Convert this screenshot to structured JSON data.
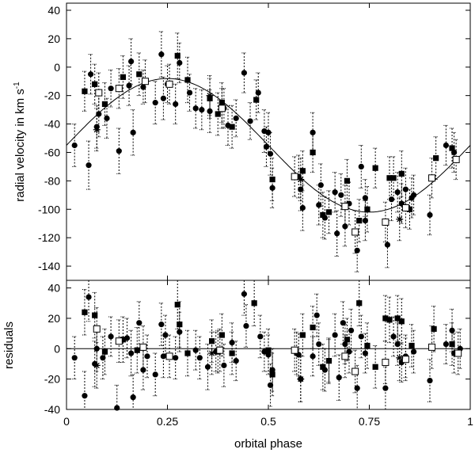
{
  "chart_data": [
    {
      "panel": "top",
      "type": "scatter",
      "title": "",
      "ylabel": "radial velocity in km s",
      "ylabel_superscript": "-1",
      "xlim": [
        0,
        1
      ],
      "ylim": [
        -150,
        45
      ],
      "xticks": [
        0,
        0.25,
        0.5,
        0.75,
        1
      ],
      "xticklabels": [
        "0",
        "0.25",
        "0.5",
        "0.75",
        "1"
      ],
      "yticks": [
        -140,
        -120,
        -100,
        -80,
        -60,
        -40,
        -20,
        0,
        20,
        40
      ],
      "ytick_labels_shown": true,
      "grid": false,
      "model_curve": {
        "offset": -55,
        "amplitude": 47,
        "phase_of_max": 0.25
      },
      "series": [
        {
          "marker": "filled-circle",
          "points": [
            [
              0.02,
              -55,
              15
            ],
            [
              0.055,
              -69,
              17
            ],
            [
              0.06,
              -5,
              14
            ],
            [
              0.075,
              -42,
              15
            ],
            [
              0.08,
              -33,
              16
            ],
            [
              0.1,
              -36,
              14
            ],
            [
              0.11,
              -15,
              13
            ],
            [
              0.13,
              -59,
              16
            ],
            [
              0.155,
              -13,
              14
            ],
            [
              0.16,
              4,
              16
            ],
            [
              0.165,
              -46,
              16
            ],
            [
              0.19,
              -14,
              12
            ],
            [
              0.22,
              -25,
              15
            ],
            [
              0.235,
              9,
              16
            ],
            [
              0.24,
              -22,
              15
            ],
            [
              0.25,
              -12,
              13
            ],
            [
              0.27,
              -26,
              14
            ],
            [
              0.28,
              3,
              14
            ],
            [
              0.305,
              -18,
              13
            ],
            [
              0.32,
              -29,
              14
            ],
            [
              0.335,
              -30,
              14
            ],
            [
              0.355,
              -31,
              15
            ],
            [
              0.39,
              -29,
              14
            ],
            [
              0.4,
              -41,
              14
            ],
            [
              0.42,
              -36,
              13
            ],
            [
              0.44,
              -4,
              14
            ],
            [
              0.455,
              -38,
              13
            ],
            [
              0.475,
              -18,
              14
            ],
            [
              0.49,
              -45,
              15
            ],
            [
              0.495,
              -56,
              14
            ],
            [
              0.5,
              -46,
              14
            ],
            [
              0.505,
              -61,
              15
            ],
            [
              0.51,
              -85,
              14
            ],
            [
              0.575,
              -77,
              15
            ],
            [
              0.58,
              -86,
              15
            ],
            [
              0.585,
              -99,
              16
            ],
            [
              0.61,
              -46,
              14
            ],
            [
              0.625,
              -97,
              14
            ],
            [
              0.63,
              -83,
              15
            ],
            [
              0.64,
              -106,
              15
            ],
            [
              0.665,
              -88,
              14
            ],
            [
              0.67,
              -117,
              16
            ],
            [
              0.68,
              -90,
              15
            ],
            [
              0.69,
              -112,
              14
            ],
            [
              0.7,
              -96,
              15
            ],
            [
              0.72,
              -129,
              15
            ],
            [
              0.73,
              -70,
              15
            ],
            [
              0.74,
              -92,
              13
            ],
            [
              0.74,
              -108,
              14
            ],
            [
              0.795,
              -125,
              16
            ],
            [
              0.805,
              -93,
              15
            ],
            [
              0.82,
              -88,
              14
            ],
            [
              0.83,
              -96,
              14
            ],
            [
              0.84,
              -86,
              15
            ],
            [
              0.855,
              -92,
              14
            ],
            [
              0.86,
              -90,
              14
            ],
            [
              0.9,
              -104,
              14
            ],
            [
              0.94,
              -55,
              14
            ],
            [
              0.96,
              -60,
              14
            ]
          ]
        },
        {
          "marker": "filled-square",
          "points": [
            [
              0.045,
              -17,
              14
            ],
            [
              0.07,
              -12,
              14
            ],
            [
              0.095,
              -26,
              15
            ],
            [
              0.14,
              -7,
              15
            ],
            [
              0.18,
              -5,
              15
            ],
            [
              0.275,
              8,
              16
            ],
            [
              0.3,
              -9,
              16
            ],
            [
              0.355,
              -22,
              14
            ],
            [
              0.375,
              -33,
              15
            ],
            [
              0.385,
              -25,
              14
            ],
            [
              0.41,
              -42,
              15
            ],
            [
              0.47,
              -23,
              14
            ],
            [
              0.51,
              -79,
              15
            ],
            [
              0.585,
              -73,
              14
            ],
            [
              0.61,
              -60,
              14
            ],
            [
              0.635,
              -104,
              16
            ],
            [
              0.65,
              -102,
              15
            ],
            [
              0.695,
              -80,
              15
            ],
            [
              0.725,
              -108,
              15
            ],
            [
              0.745,
              -100,
              16
            ],
            [
              0.765,
              -71,
              14
            ],
            [
              0.8,
              -78,
              15
            ],
            [
              0.81,
              -78,
              15
            ],
            [
              0.83,
              -75,
              16
            ],
            [
              0.85,
              -100,
              14
            ],
            [
              0.915,
              -64,
              15
            ],
            [
              0.955,
              -57,
              14
            ]
          ]
        },
        {
          "marker": "open-square",
          "points": [
            [
              0.08,
              -18,
              14
            ],
            [
              0.13,
              -15,
              14
            ],
            [
              0.195,
              -10,
              15
            ],
            [
              0.255,
              -12,
              14
            ],
            [
              0.385,
              -29,
              14
            ],
            [
              0.565,
              -77,
              14
            ],
            [
              0.69,
              -98,
              15
            ],
            [
              0.715,
              -116,
              15
            ],
            [
              0.79,
              -109,
              14
            ],
            [
              0.84,
              -99,
              14
            ],
            [
              0.905,
              -78,
              14
            ],
            [
              0.965,
              -65,
              14
            ]
          ]
        },
        {
          "marker": "star",
          "points": [
            [
              0.075,
              -44,
              15
            ],
            [
              0.355,
              -20,
              14
            ],
            [
              0.58,
              -79,
              15
            ],
            [
              0.825,
              -107,
              15
            ]
          ]
        }
      ]
    },
    {
      "panel": "bottom",
      "type": "scatter",
      "title": "",
      "xlabel": "orbital phase",
      "ylabel": "residuals",
      "xlim": [
        0,
        1
      ],
      "ylim": [
        -40,
        45
      ],
      "xticks": [
        0,
        0.25,
        0.5,
        0.75,
        1
      ],
      "xticklabels": [
        "0",
        "0.25",
        "0.5",
        "0.75",
        "1"
      ],
      "yticks": [
        -40,
        -20,
        0,
        20,
        40
      ],
      "ytick_labels_shown": true,
      "zero_line": true,
      "grid": false,
      "series": [
        {
          "marker": "filled-circle",
          "points": [
            [
              0.02,
              -6,
              14
            ],
            [
              0.045,
              -31,
              16
            ],
            [
              0.055,
              34,
              16
            ],
            [
              0.07,
              -10,
              15
            ],
            [
              0.075,
              0,
              15
            ],
            [
              0.09,
              -6,
              14
            ],
            [
              0.11,
              8,
              13
            ],
            [
              0.125,
              -39,
              15
            ],
            [
              0.15,
              7,
              13
            ],
            [
              0.16,
              -3,
              15
            ],
            [
              0.165,
              -32,
              15
            ],
            [
              0.18,
              17,
              14
            ],
            [
              0.19,
              -14,
              13
            ],
            [
              0.2,
              -5,
              14
            ],
            [
              0.22,
              -17,
              14
            ],
            [
              0.235,
              16,
              14
            ],
            [
              0.24,
              -5,
              14
            ],
            [
              0.245,
              9,
              13
            ],
            [
              0.27,
              -6,
              14
            ],
            [
              0.28,
              11,
              13
            ],
            [
              0.32,
              -1,
              13
            ],
            [
              0.33,
              -6,
              14
            ],
            [
              0.35,
              -12,
              15
            ],
            [
              0.37,
              -2,
              13
            ],
            [
              0.39,
              -11,
              14
            ],
            [
              0.41,
              4,
              13
            ],
            [
              0.42,
              -8,
              13
            ],
            [
              0.44,
              36,
              14
            ],
            [
              0.445,
              15,
              14
            ],
            [
              0.48,
              8,
              14
            ],
            [
              0.49,
              -2,
              13
            ],
            [
              0.5,
              -4,
              13
            ],
            [
              0.505,
              -24,
              14
            ],
            [
              0.51,
              -14,
              14
            ],
            [
              0.57,
              -3,
              14
            ],
            [
              0.575,
              -4,
              14
            ],
            [
              0.58,
              -20,
              15
            ],
            [
              0.61,
              -5,
              13
            ],
            [
              0.62,
              22,
              14
            ],
            [
              0.625,
              3,
              14
            ],
            [
              0.64,
              -14,
              14
            ],
            [
              0.65,
              -8,
              14
            ],
            [
              0.665,
              9,
              14
            ],
            [
              0.675,
              -19,
              15
            ],
            [
              0.685,
              17,
              14
            ],
            [
              0.69,
              3,
              13
            ],
            [
              0.7,
              -2,
              14
            ],
            [
              0.705,
              12,
              14
            ],
            [
              0.72,
              -26,
              15
            ],
            [
              0.73,
              8,
              14
            ],
            [
              0.74,
              -3,
              13
            ],
            [
              0.79,
              -26,
              14
            ],
            [
              0.81,
              8,
              13
            ],
            [
              0.82,
              3,
              14
            ],
            [
              0.83,
              -9,
              13
            ],
            [
              0.84,
              -5,
              14
            ],
            [
              0.86,
              -2,
              14
            ],
            [
              0.9,
              -21,
              14
            ],
            [
              0.94,
              3,
              13
            ],
            [
              0.955,
              12,
              14
            ],
            [
              0.96,
              -3,
              13
            ],
            [
              0.975,
              0,
              13
            ]
          ]
        },
        {
          "marker": "filled-square",
          "points": [
            [
              0.045,
              24,
              15
            ],
            [
              0.07,
              22,
              15
            ],
            [
              0.095,
              -2,
              15
            ],
            [
              0.14,
              6,
              15
            ],
            [
              0.175,
              -1,
              15
            ],
            [
              0.275,
              29,
              16
            ],
            [
              0.28,
              16,
              15
            ],
            [
              0.3,
              -3,
              15
            ],
            [
              0.36,
              5,
              14
            ],
            [
              0.375,
              -2,
              14
            ],
            [
              0.385,
              9,
              14
            ],
            [
              0.41,
              -3,
              14
            ],
            [
              0.465,
              30,
              15
            ],
            [
              0.5,
              -1,
              14
            ],
            [
              0.51,
              -17,
              14
            ],
            [
              0.585,
              9,
              14
            ],
            [
              0.61,
              14,
              14
            ],
            [
              0.635,
              -12,
              15
            ],
            [
              0.65,
              -8,
              15
            ],
            [
              0.695,
              6,
              14
            ],
            [
              0.725,
              30,
              15
            ],
            [
              0.745,
              2,
              15
            ],
            [
              0.765,
              -12,
              14
            ],
            [
              0.79,
              20,
              15
            ],
            [
              0.8,
              19,
              15
            ],
            [
              0.82,
              20,
              15
            ],
            [
              0.83,
              18,
              15
            ],
            [
              0.855,
              2,
              14
            ],
            [
              0.91,
              13,
              15
            ],
            [
              0.955,
              3,
              14
            ]
          ]
        },
        {
          "marker": "open-square",
          "points": [
            [
              0.075,
              13,
              14
            ],
            [
              0.13,
              5,
              14
            ],
            [
              0.19,
              1,
              14
            ],
            [
              0.255,
              -5,
              14
            ],
            [
              0.38,
              -1,
              14
            ],
            [
              0.565,
              -1,
              14
            ],
            [
              0.69,
              -5,
              14
            ],
            [
              0.715,
              -15,
              14
            ],
            [
              0.79,
              -9,
              14
            ],
            [
              0.84,
              -7,
              14
            ],
            [
              0.905,
              1,
              14
            ],
            [
              0.97,
              -3,
              14
            ]
          ]
        },
        {
          "marker": "star",
          "points": [
            [
              0.075,
              -11,
              15
            ],
            [
              0.36,
              -3,
              14
            ],
            [
              0.58,
              -20,
              15
            ],
            [
              0.825,
              -6,
              15
            ]
          ]
        }
      ]
    }
  ]
}
